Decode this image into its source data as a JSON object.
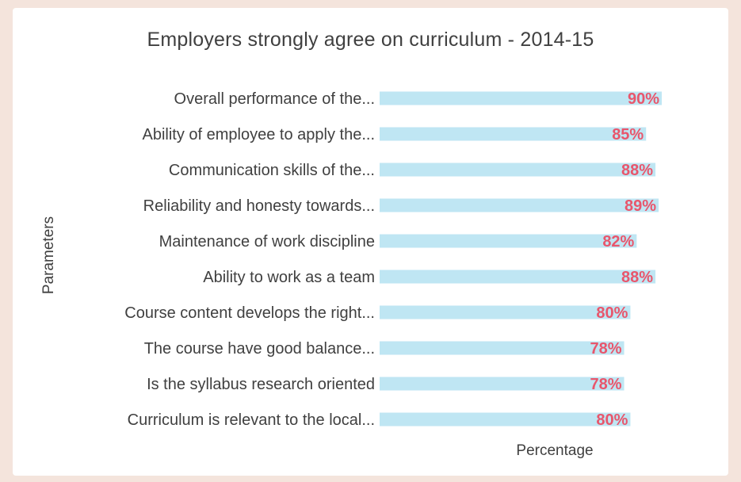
{
  "chart_data": {
    "type": "bar",
    "orientation": "horizontal",
    "title": "Employers strongly agree on curriculum - 2014-15",
    "xlabel": "Percentage",
    "ylabel": "Parameters",
    "xlim": [
      0,
      100
    ],
    "categories": [
      "Overall performance of the...",
      "Ability of employee to apply the...",
      "Communication skills of the...",
      "Reliability and honesty towards...",
      "Maintenance of work discipline",
      "Ability to work as a team",
      "Course content develops the right...",
      "The course have good balance...",
      "Is the syllabus research oriented",
      "Curriculum is relevant to the local..."
    ],
    "values": [
      90,
      85,
      88,
      89,
      82,
      88,
      80,
      78,
      78,
      80
    ],
    "data_labels": [
      "90%",
      "85%",
      "88%",
      "89%",
      "82%",
      "88%",
      "80%",
      "78%",
      "78%",
      "80%"
    ],
    "bar_color": "#bfe6f3",
    "label_color": "#e8566c",
    "grid": false,
    "legend": "none"
  }
}
